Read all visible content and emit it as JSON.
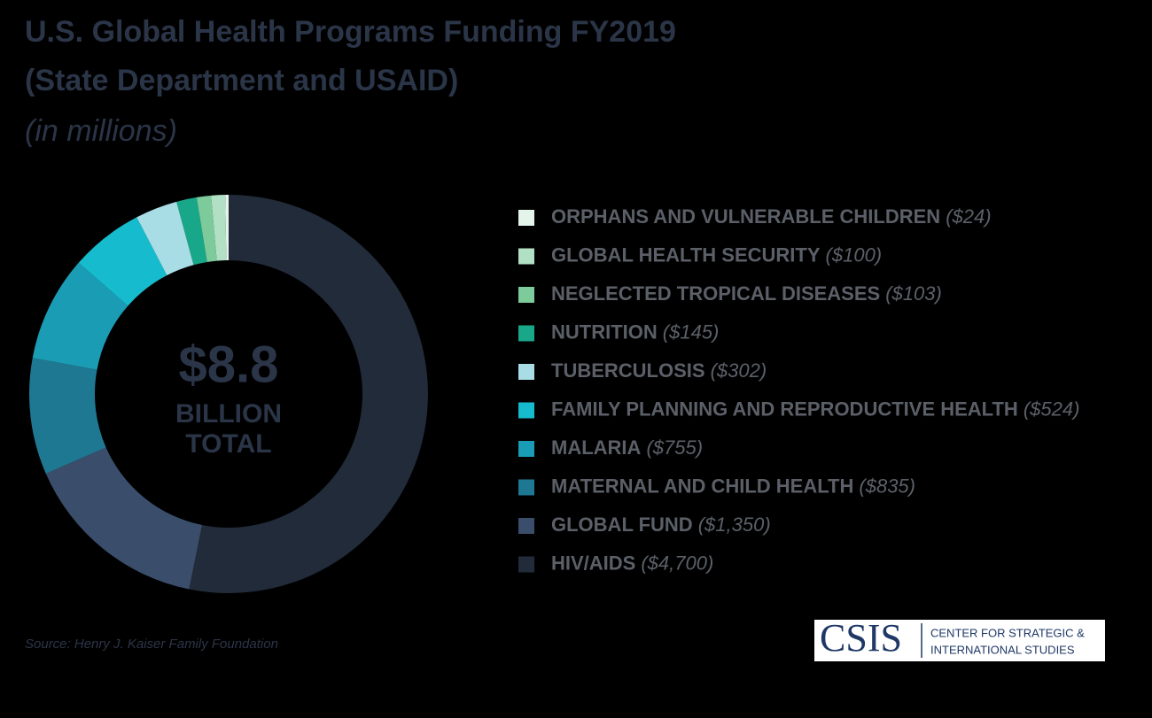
{
  "chart_data": {
    "type": "pie",
    "donut": true,
    "title": [
      "U.S. Global Health Programs Funding FY2019",
      "(State Department and USAID)"
    ],
    "subtitle": "(in millions)",
    "center_text": [
      "$8.8",
      "BILLION",
      "TOTAL"
    ],
    "categories": [
      "ORPHANS AND VULNERABLE CHILDREN",
      "GLOBAL HEALTH SECURITY",
      "NEGLECTED TROPICAL DISEASES",
      "NUTRITION",
      "TUBERCULOSIS",
      "FAMILY PLANNING AND REPRODUCTIVE HEALTH",
      "MALARIA",
      "MATERNAL AND CHILD HEALTH",
      "GLOBAL FUND",
      "HIV/AIDS"
    ],
    "values": [
      24,
      100,
      103,
      145,
      302,
      524,
      755,
      835,
      1350,
      4700
    ],
    "value_labels": [
      "($24)",
      "($100)",
      "($103)",
      "($145)",
      "($302)",
      "($524)",
      "($755)",
      "($835)",
      "($1,350)",
      "($4,700)"
    ],
    "colors": [
      "#e4f4ea",
      "#b2e0c4",
      "#7dcb9b",
      "#19a78a",
      "#a9dde5",
      "#16bccd",
      "#1a9db4",
      "#1f7892",
      "#3a4e6c",
      "#222b39"
    ],
    "source": "Source: Henry J. Kaiser Family Foundation",
    "logo": {
      "mark": "CSIS",
      "lines": [
        "CENTER FOR STRATEGIC &",
        "INTERNATIONAL STUDIES"
      ]
    }
  }
}
